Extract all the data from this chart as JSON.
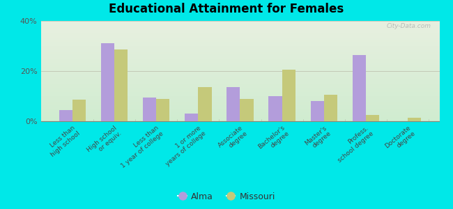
{
  "title": "Educational Attainment for Females",
  "categories": [
    "Less than\nhigh school",
    "High school\nor equiv.",
    "Less than\n1 year of college",
    "1 or more\nyears of college",
    "Associate\ndegree",
    "Bachelor's\ndegree",
    "Master's\ndegree",
    "Profess.\nschool degree",
    "Doctorate\ndegree"
  ],
  "alma_values": [
    4.5,
    31.0,
    9.5,
    3.0,
    13.5,
    10.0,
    8.0,
    26.5,
    0.0
  ],
  "missouri_values": [
    8.5,
    28.5,
    9.0,
    13.5,
    9.0,
    20.5,
    10.5,
    2.5,
    1.5
  ],
  "alma_color": "#b39ddb",
  "missouri_color": "#c5c97a",
  "plot_bg_top": "#f0f4e8",
  "plot_bg_bottom": "#d8f0d8",
  "outer_bg": "#00e8e8",
  "ylim": [
    0,
    40
  ],
  "yticks": [
    0,
    20,
    40
  ],
  "ytick_labels": [
    "0%",
    "20%",
    "40%"
  ],
  "legend_labels": [
    "Alma",
    "Missouri"
  ],
  "bar_width": 0.32,
  "watermark": "City-Data.com"
}
